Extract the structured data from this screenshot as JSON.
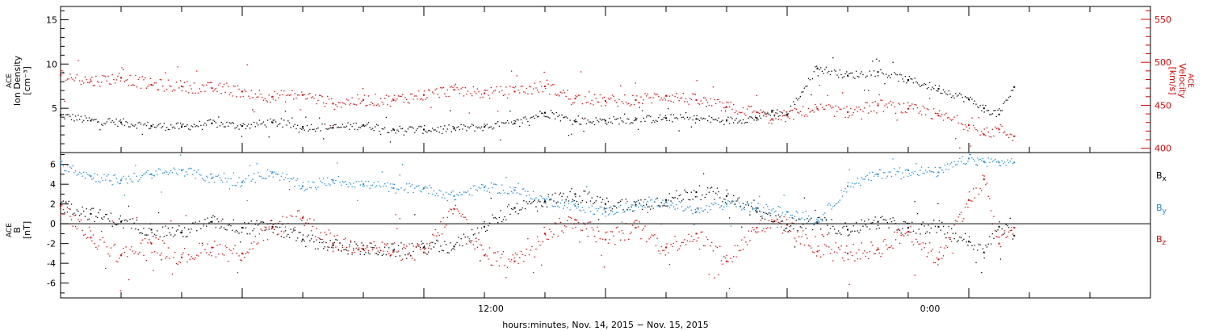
{
  "chart_data": [
    {
      "type": "scatter",
      "panel": "top",
      "ylabel_lines": [
        "ACE",
        "Ion Density",
        "[cm⁻³]"
      ],
      "ylabel_right_lines": [
        "ACE",
        "Velocity",
        "[km/s]"
      ],
      "ylim": [
        0,
        16.5
      ],
      "yticks_major": [
        5,
        10,
        15
      ],
      "yticks_minor": [
        1,
        2,
        3,
        4,
        6,
        7,
        8,
        9,
        11,
        12,
        13,
        14,
        16
      ],
      "ylim_right": [
        395,
        565
      ],
      "yticks_right_major": [
        400,
        450,
        500,
        550
      ],
      "yticks_right_minor": [
        410,
        420,
        430,
        440,
        460,
        470,
        480,
        490,
        510,
        520,
        530,
        540,
        560
      ],
      "series": [
        {
          "color": "#000000",
          "axis": "left",
          "x": [
            0,
            1,
            2,
            3,
            4,
            5,
            6,
            7,
            8,
            9,
            10,
            11,
            12,
            13,
            14,
            15,
            16,
            17,
            18,
            19,
            20,
            21,
            22,
            23,
            23.5,
            24,
            25,
            26,
            27,
            28,
            29,
            30,
            30.5,
            31,
            31.5
          ],
          "y": [
            4.2,
            3.6,
            3.4,
            3.0,
            2.9,
            3.3,
            3.0,
            3.4,
            2.9,
            2.8,
            3.1,
            2.6,
            2.6,
            2.7,
            2.9,
            3.3,
            4.5,
            3.5,
            3.6,
            3.7,
            3.9,
            3.8,
            3.6,
            3.9,
            4.6,
            4.3,
            9.5,
            8.7,
            9.1,
            8.2,
            7.2,
            6.0,
            5.0,
            4.3,
            7.4
          ]
        },
        {
          "color": "#e00000",
          "axis": "right",
          "x": [
            0,
            1,
            2,
            3,
            4,
            5,
            6,
            7,
            8,
            9,
            10,
            11,
            12,
            13,
            14,
            15,
            16,
            17,
            18,
            19,
            20,
            21,
            22,
            23,
            23.5,
            24,
            25,
            26,
            27,
            28,
            29,
            30,
            30.5,
            31,
            31.5
          ],
          "y": [
            485,
            478,
            482,
            474,
            472,
            470,
            466,
            460,
            462,
            452,
            456,
            456,
            462,
            468,
            464,
            466,
            472,
            458,
            455,
            456,
            461,
            456,
            448,
            442,
            434,
            438,
            446,
            442,
            450,
            446,
            438,
            427,
            416,
            422,
            414
          ]
        }
      ]
    },
    {
      "type": "scatter",
      "panel": "bottom",
      "ylabel_lines": [
        "ACE",
        "B",
        "[nT]"
      ],
      "ylim": [
        -7.5,
        7.2
      ],
      "yticks_major": [
        -6,
        -4,
        -2,
        0,
        2,
        4,
        6
      ],
      "zero_line": true,
      "legend_placement": "right",
      "series": [
        {
          "name": "Bx",
          "color": "#000000",
          "x": [
            0,
            1,
            2,
            3,
            4,
            5,
            6,
            7,
            8,
            9,
            10,
            11,
            12,
            13,
            14,
            15,
            16,
            17,
            18,
            19,
            20,
            21,
            22,
            23,
            24,
            25,
            26,
            27,
            28,
            29,
            30,
            30.5,
            31,
            31.5
          ],
          "y": [
            2.0,
            1.0,
            0.2,
            -0.6,
            -0.9,
            0.2,
            -0.4,
            -0.3,
            -1.6,
            -2.2,
            -2.6,
            -2.7,
            -2.4,
            -2.3,
            -0.3,
            1.6,
            2.3,
            3.0,
            2.0,
            1.9,
            2.4,
            3.2,
            2.8,
            1.2,
            -0.1,
            0.1,
            -0.6,
            0.2,
            -0.4,
            -0.3,
            -1.8,
            -2.9,
            -0.3,
            -1.2
          ]
        },
        {
          "name": "By",
          "color": "#1e8bdc",
          "x": [
            0,
            1,
            2,
            3,
            4,
            5,
            6,
            7,
            8,
            9,
            10,
            11,
            12,
            13,
            14,
            15,
            16,
            17,
            18,
            19,
            20,
            21,
            22,
            23,
            24,
            25,
            26,
            27,
            28,
            29,
            30,
            30.5,
            31,
            31.5
          ],
          "y": [
            6.0,
            4.8,
            4.4,
            5.0,
            5.4,
            4.6,
            4.2,
            5.2,
            3.8,
            4.4,
            4.0,
            3.6,
            3.6,
            2.8,
            3.7,
            3.4,
            2.4,
            1.8,
            1.2,
            1.8,
            2.2,
            1.2,
            2.0,
            1.6,
            1.2,
            0.2,
            3.8,
            5.0,
            5.4,
            5.2,
            6.6,
            6.3,
            6.2,
            6.2
          ]
        },
        {
          "name": "Bz",
          "color": "#e00000",
          "x": [
            0,
            1,
            2,
            3,
            4,
            5,
            6,
            7,
            8,
            9,
            10,
            11,
            12,
            13,
            14,
            15,
            16,
            17,
            18,
            19,
            20,
            21,
            22,
            23,
            24,
            25,
            26,
            27,
            28,
            29,
            30,
            30.5,
            31,
            31.5
          ],
          "y": [
            1.8,
            -1.4,
            -3.2,
            -2.0,
            -3.4,
            -2.4,
            -3.0,
            -0.4,
            0.6,
            -2.0,
            -2.2,
            -2.8,
            -2.9,
            1.5,
            -3.2,
            -3.8,
            -1.0,
            0.4,
            -1.6,
            -0.4,
            -2.4,
            -1.0,
            -3.8,
            -0.4,
            -0.1,
            -2.8,
            -3.0,
            -2.6,
            -0.8,
            -3.6,
            2.4,
            4.5,
            -2.0,
            -0.4
          ]
        }
      ]
    }
  ],
  "legend": {
    "bx": {
      "base": "B",
      "sub": "x",
      "color": "#000000"
    },
    "by": {
      "base": "B",
      "sub": "y",
      "color": "#1e8bdc"
    },
    "bz": {
      "base": "B",
      "sub": "z",
      "color": "#e00000"
    }
  },
  "xaxis": {
    "ticks": [
      "12:00",
      "0:00"
    ],
    "label": "hours:minutes, Nov. 14, 2015 − Nov. 15, 2015"
  }
}
